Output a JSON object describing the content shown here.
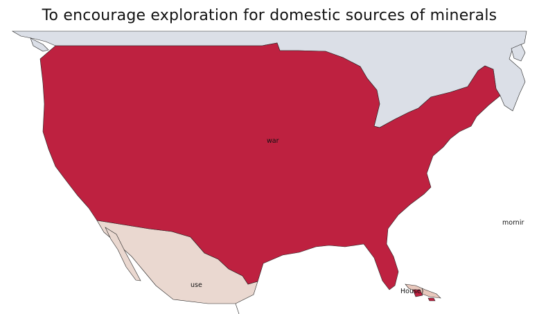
{
  "title": "To encourage exploration for domestic sources of minerals",
  "regions": {
    "canada": {
      "fill": "#dbdfe7"
    },
    "usa": {
      "fill": "#be2140"
    },
    "mexico": {
      "fill": "#ead8d0"
    },
    "caribbean": {
      "fill": "#e8c8bd"
    }
  },
  "labels": {
    "usa": "war",
    "mexico": "use",
    "atlantic": "mornir",
    "caribbean": "House)"
  },
  "colors": {
    "outline": "#222222",
    "background": "#ffffff"
  }
}
